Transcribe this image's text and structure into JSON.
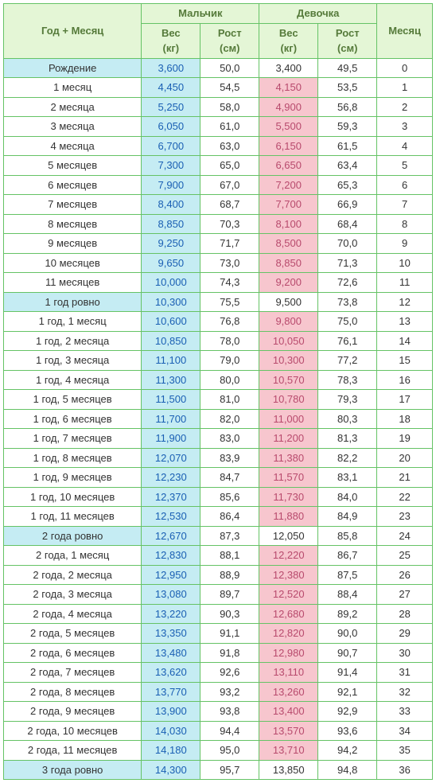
{
  "headers": {
    "age": "Год + Месяц",
    "boy": "Мальчик",
    "girl": "Девочка",
    "month": "Месяц",
    "weight": "Вес\n(кг)",
    "height": "Рост\n(см)"
  },
  "styling": {
    "border_color": "#65c365",
    "header_bg": "#e4f6d6",
    "header_text": "#557a3a",
    "boy_weight_bg": "#c5ecf3",
    "boy_weight_text": "#1a5fb4",
    "girl_weight_bg": "#f7c6ce",
    "girl_weight_text": "#b84a6d",
    "plain_text": "#333333",
    "font_family": "Verdana",
    "font_size_pt": 10
  },
  "column_widths": {
    "age": 164,
    "boy_w": 70,
    "boy_h": 70,
    "girl_w": 70,
    "girl_h": 70,
    "month": 66
  },
  "rows": [
    {
      "age": "Рождение",
      "bw": "3,600",
      "bh": "50,0",
      "gw": "3,400",
      "gh": "49,5",
      "m": "0",
      "milestone": true
    },
    {
      "age": "1 месяц",
      "bw": "4,450",
      "bh": "54,5",
      "gw": "4,150",
      "gh": "53,5",
      "m": "1"
    },
    {
      "age": "2 месяца",
      "bw": "5,250",
      "bh": "58,0",
      "gw": "4,900",
      "gh": "56,8",
      "m": "2"
    },
    {
      "age": "3 месяца",
      "bw": "6,050",
      "bh": "61,0",
      "gw": "5,500",
      "gh": "59,3",
      "m": "3"
    },
    {
      "age": "4 месяца",
      "bw": "6,700",
      "bh": "63,0",
      "gw": "6,150",
      "gh": "61,5",
      "m": "4"
    },
    {
      "age": "5 месяцев",
      "bw": "7,300",
      "bh": "65,0",
      "gw": "6,650",
      "gh": "63,4",
      "m": "5"
    },
    {
      "age": "6 месяцев",
      "bw": "7,900",
      "bh": "67,0",
      "gw": "7,200",
      "gh": "65,3",
      "m": "6"
    },
    {
      "age": "7 месяцев",
      "bw": "8,400",
      "bh": "68,7",
      "gw": "7,700",
      "gh": "66,9",
      "m": "7"
    },
    {
      "age": "8 месяцев",
      "bw": "8,850",
      "bh": "70,3",
      "gw": "8,100",
      "gh": "68,4",
      "m": "8"
    },
    {
      "age": "9 месяцев",
      "bw": "9,250",
      "bh": "71,7",
      "gw": "8,500",
      "gh": "70,0",
      "m": "9"
    },
    {
      "age": "10 месяцев",
      "bw": "9,650",
      "bh": "73,0",
      "gw": "8,850",
      "gh": "71,3",
      "m": "10"
    },
    {
      "age": "11 месяцев",
      "bw": "10,000",
      "bh": "74,3",
      "gw": "9,200",
      "gh": "72,6",
      "m": "11"
    },
    {
      "age": "1 год ровно",
      "bw": "10,300",
      "bh": "75,5",
      "gw": "9,500",
      "gh": "73,8",
      "m": "12",
      "milestone": true
    },
    {
      "age": "1 год, 1 месяц",
      "bw": "10,600",
      "bh": "76,8",
      "gw": "9,800",
      "gh": "75,0",
      "m": "13"
    },
    {
      "age": "1 год, 2 месяца",
      "bw": "10,850",
      "bh": "78,0",
      "gw": "10,050",
      "gh": "76,1",
      "m": "14"
    },
    {
      "age": "1 год, 3 месяца",
      "bw": "11,100",
      "bh": "79,0",
      "gw": "10,300",
      "gh": "77,2",
      "m": "15"
    },
    {
      "age": "1 год, 4 месяца",
      "bw": "11,300",
      "bh": "80,0",
      "gw": "10,570",
      "gh": "78,3",
      "m": "16"
    },
    {
      "age": "1 год, 5 месяцев",
      "bw": "11,500",
      "bh": "81,0",
      "gw": "10,780",
      "gh": "79,3",
      "m": "17"
    },
    {
      "age": "1 год, 6 месяцев",
      "bw": "11,700",
      "bh": "82,0",
      "gw": "11,000",
      "gh": "80,3",
      "m": "18"
    },
    {
      "age": "1 год, 7 месяцев",
      "bw": "11,900",
      "bh": "83,0",
      "gw": "11,200",
      "gh": "81,3",
      "m": "19"
    },
    {
      "age": "1 год, 8 месяцев",
      "bw": "12,070",
      "bh": "83,9",
      "gw": "11,380",
      "gh": "82,2",
      "m": "20"
    },
    {
      "age": "1 год, 9 месяцев",
      "bw": "12,230",
      "bh": "84,7",
      "gw": "11,570",
      "gh": "83,1",
      "m": "21"
    },
    {
      "age": "1 год, 10 месяцев",
      "bw": "12,370",
      "bh": "85,6",
      "gw": "11,730",
      "gh": "84,0",
      "m": "22"
    },
    {
      "age": "1 год, 11 месяцев",
      "bw": "12,530",
      "bh": "86,4",
      "gw": "11,880",
      "gh": "84,9",
      "m": "23"
    },
    {
      "age": "2 года ровно",
      "bw": "12,670",
      "bh": "87,3",
      "gw": "12,050",
      "gh": "85,8",
      "m": "24",
      "milestone": true
    },
    {
      "age": "2 года, 1 месяц",
      "bw": "12,830",
      "bh": "88,1",
      "gw": "12,220",
      "gh": "86,7",
      "m": "25"
    },
    {
      "age": "2 года, 2 месяца",
      "bw": "12,950",
      "bh": "88,9",
      "gw": "12,380",
      "gh": "87,5",
      "m": "26"
    },
    {
      "age": "2 года, 3 месяца",
      "bw": "13,080",
      "bh": "89,7",
      "gw": "12,520",
      "gh": "88,4",
      "m": "27"
    },
    {
      "age": "2 года, 4 месяца",
      "bw": "13,220",
      "bh": "90,3",
      "gw": "12,680",
      "gh": "89,2",
      "m": "28"
    },
    {
      "age": "2 года, 5 месяцев",
      "bw": "13,350",
      "bh": "91,1",
      "gw": "12,820",
      "gh": "90,0",
      "m": "29"
    },
    {
      "age": "2 года, 6 месяцев",
      "bw": "13,480",
      "bh": "91,8",
      "gw": "12,980",
      "gh": "90,7",
      "m": "30"
    },
    {
      "age": "2 года, 7 месяцев",
      "bw": "13,620",
      "bh": "92,6",
      "gw": "13,110",
      "gh": "91,4",
      "m": "31"
    },
    {
      "age": "2 года, 8 месяцев",
      "bw": "13,770",
      "bh": "93,2",
      "gw": "13,260",
      "gh": "92,1",
      "m": "32"
    },
    {
      "age": "2 года, 9 месяцев",
      "bw": "13,900",
      "bh": "93,8",
      "gw": "13,400",
      "gh": "92,9",
      "m": "33"
    },
    {
      "age": "2 года, 10 месяцев",
      "bw": "14,030",
      "bh": "94,4",
      "gw": "13,570",
      "gh": "93,6",
      "m": "34"
    },
    {
      "age": "2 года, 11 месяцев",
      "bw": "14,180",
      "bh": "95,0",
      "gw": "13,710",
      "gh": "94,2",
      "m": "35"
    },
    {
      "age": "3 года ровно",
      "bw": "14,300",
      "bh": "95,7",
      "gw": "13,850",
      "gh": "94,8",
      "m": "36",
      "milestone": true
    }
  ]
}
